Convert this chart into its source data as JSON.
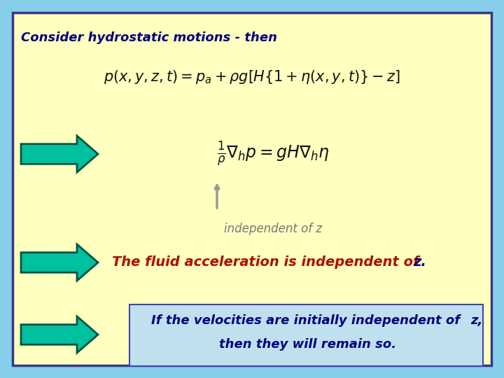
{
  "bg_outer": "#87CEEB",
  "bg_inner": "#FFFFC0",
  "border_color": "#383880",
  "title_text": "Consider hydrostatic motions - then",
  "title_color": "#000080",
  "title_fontsize": 13,
  "arrow_color": "#00C0A0",
  "arrow_edge": "#005544",
  "annot_text": "independent of z",
  "annot_color": "#777777",
  "line2_main": "The fluid acceleration is independent of ",
  "line2_z": "z.",
  "line2_color": "#AA1100",
  "line2_z_color": "#000080",
  "line2_fontsize": 14,
  "box_color": "#C0E0F0",
  "box_border": "#4444AA",
  "line3_main": "If the velocities are initially independent of ",
  "line3_z": "z,",
  "line3_cont": "then they will remain so.",
  "line3_color": "#000080",
  "line3_fontsize": 13
}
